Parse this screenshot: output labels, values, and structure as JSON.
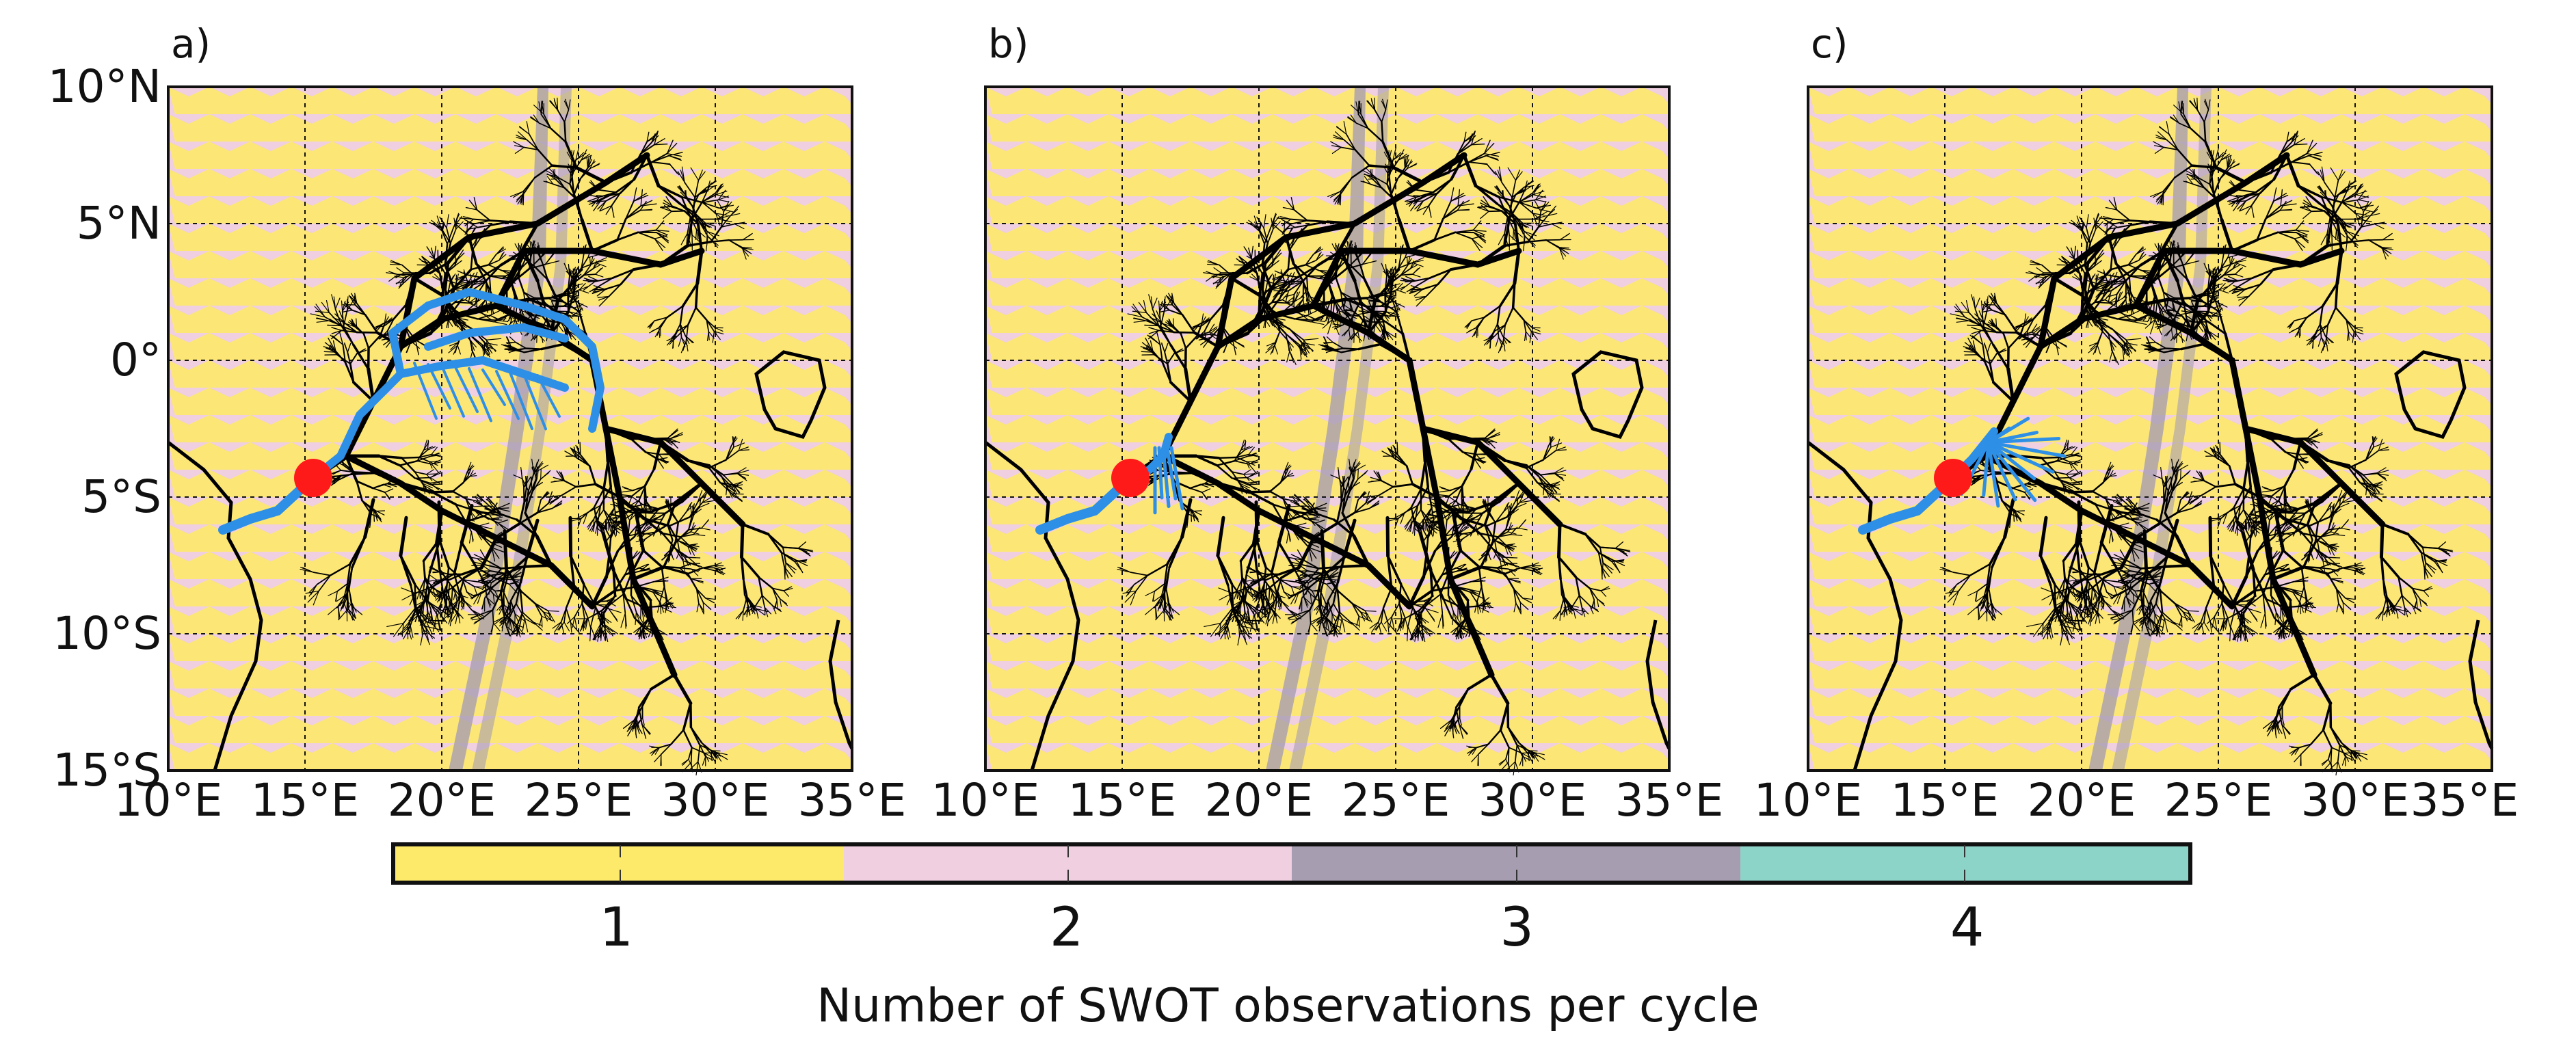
{
  "figure": {
    "panels": [
      {
        "label": "a)",
        "variant": "full"
      },
      {
        "label": "b)",
        "variant": "short"
      },
      {
        "label": "c)",
        "variant": "fan"
      }
    ],
    "lat_labels": [
      "10°N",
      "5°N",
      "0°",
      "5°S",
      "10°S",
      "15°S"
    ],
    "lon_labels": [
      "10°E",
      "15°E",
      "20°E",
      "25°E",
      "30°E",
      "35°E"
    ],
    "map_extent": {
      "lon": [
        10,
        35
      ],
      "lat": [
        -15,
        10
      ]
    },
    "outlet_point": {
      "lon": 15.3,
      "lat": -4.3,
      "color": "#ff1a1a"
    },
    "colors": {
      "river_network": "#000000",
      "highlight_reaches": "#2e8fe6",
      "coast": "#000000"
    }
  },
  "colorbar": {
    "title": "Number of SWOT observations per cycle",
    "categories": [
      {
        "value": "1",
        "color": "#fde96a"
      },
      {
        "value": "2",
        "color": "#efcfe0"
      },
      {
        "value": "3",
        "color": "#a79db0"
      },
      {
        "value": "4",
        "color": "#8dd4c8"
      }
    ]
  }
}
